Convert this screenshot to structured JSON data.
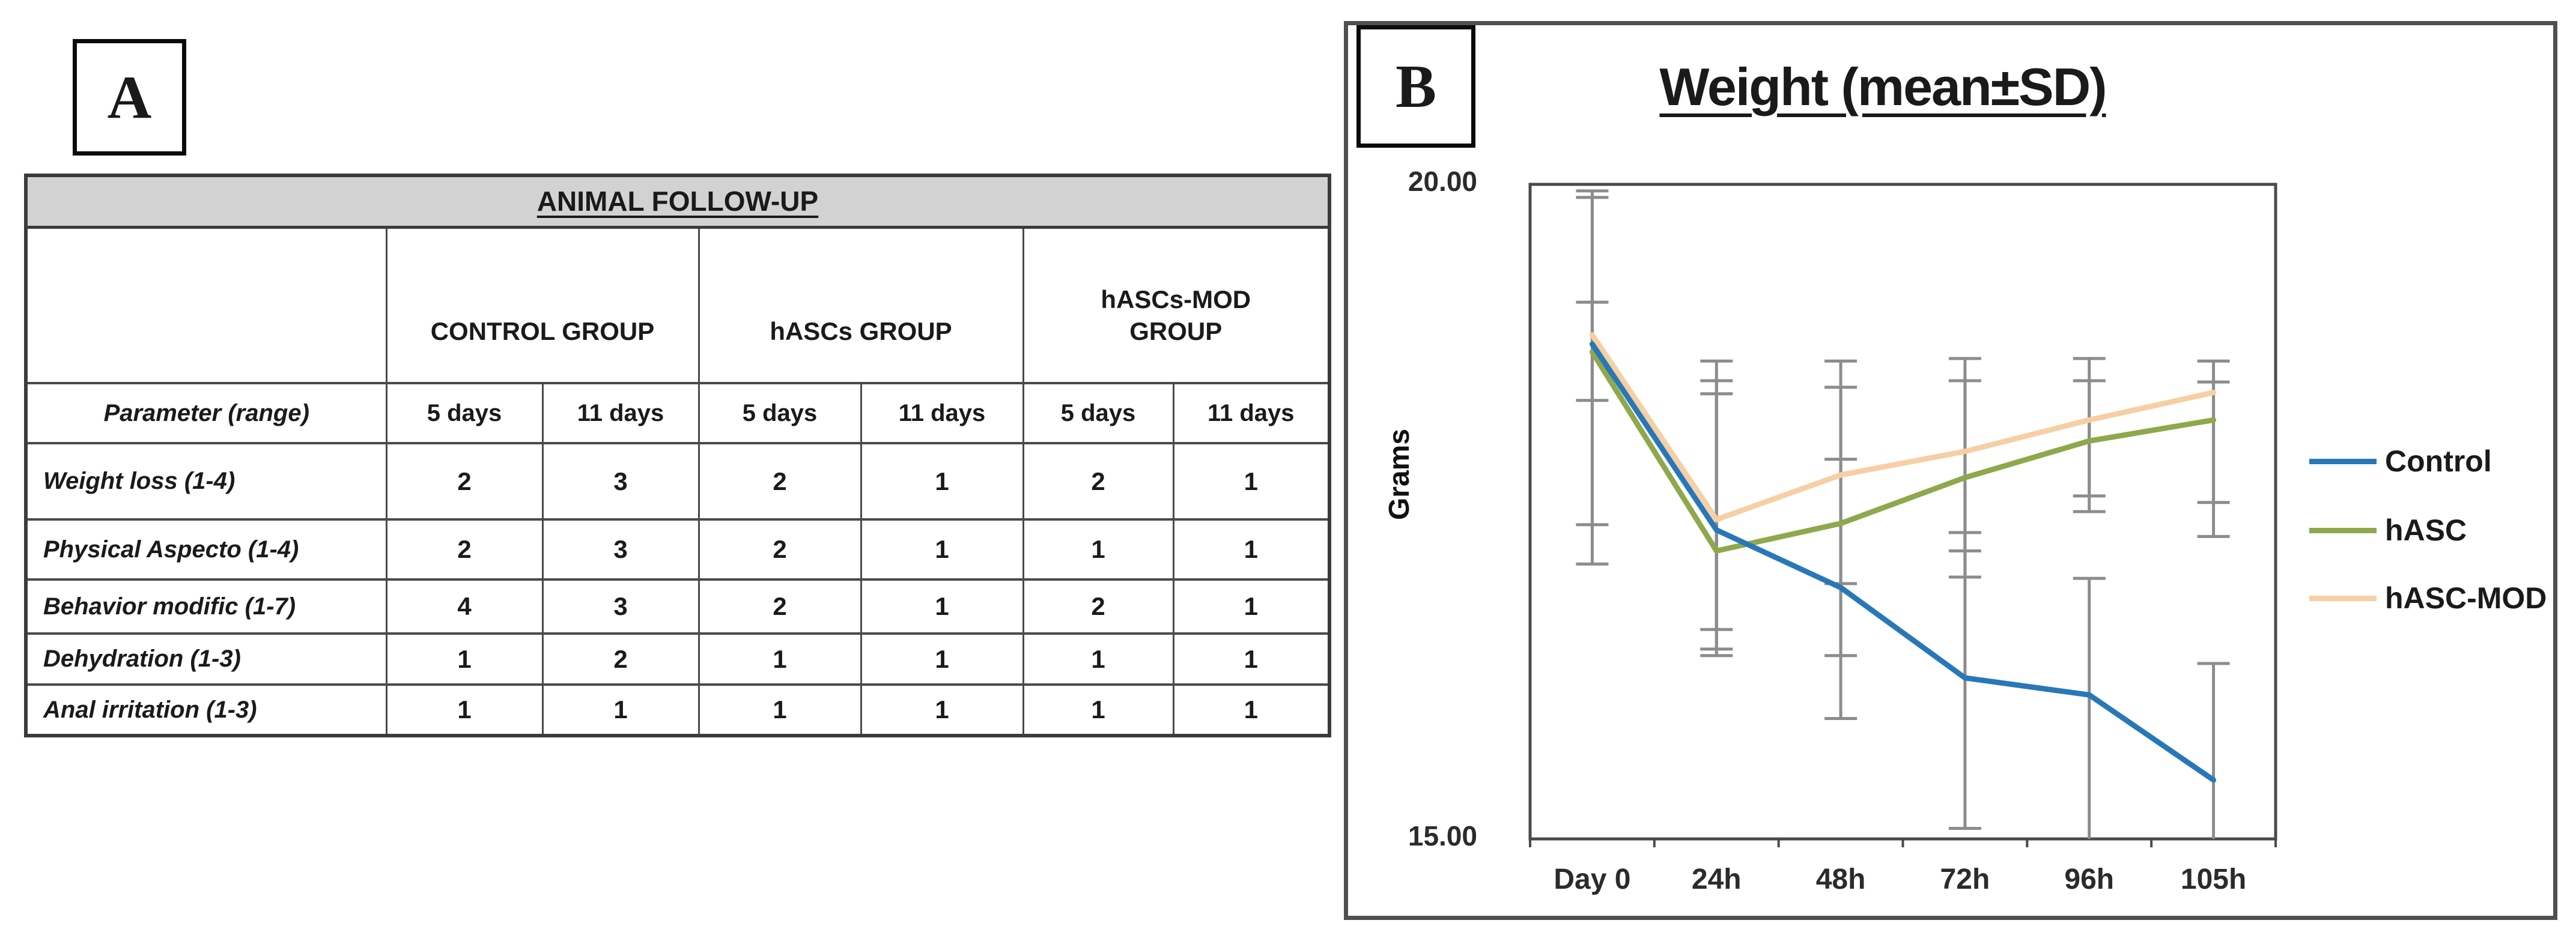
{
  "panel_a": {
    "label": "A",
    "table": {
      "title": "ANIMAL FOLLOW-UP",
      "title_bg": "#d2d2d2",
      "group_headers": [
        "CONTROL GROUP",
        "hASCs GROUP",
        "hASCs-MOD\nGROUP"
      ],
      "subheaders": [
        "Parameter (range)",
        "5 days",
        "11 days",
        "5 days",
        "11 days",
        "5 days",
        "11 days"
      ],
      "rows": [
        {
          "parameter": "Weight loss (1-4)",
          "values": [
            "2",
            "3",
            "2",
            "1",
            "2",
            "1"
          ]
        },
        {
          "parameter": "Physical Aspecto (1-4)",
          "values": [
            "2",
            "3",
            "2",
            "1",
            "1",
            "1"
          ]
        },
        {
          "parameter": "Behavior modific (1-7)",
          "values": [
            "4",
            "3",
            "2",
            "1",
            "2",
            "1"
          ]
        },
        {
          "parameter": "Dehydration (1-3)",
          "values": [
            "1",
            "2",
            "1",
            "1",
            "1",
            "1"
          ]
        },
        {
          "parameter": "Anal irritation (1-3)",
          "values": [
            "1",
            "1",
            "1",
            "1",
            "1",
            "1"
          ]
        }
      ]
    }
  },
  "panel_b": {
    "label": "B"
  },
  "chart_data": {
    "type": "line",
    "title": "Weight (mean±SD)",
    "xlabel": "",
    "ylabel": "Grams",
    "categories": [
      "Day 0",
      "24h",
      "48h",
      "72h",
      "96h",
      "105h"
    ],
    "ylim": [
      15.0,
      20.0
    ],
    "ytick_labels": [
      "20.00",
      "15.00"
    ],
    "grid": false,
    "legend_position": "right",
    "error_bar_color": "#8c8c8c",
    "series": [
      {
        "name": "Control",
        "color": "#2878b8",
        "values": [
          18.78,
          17.36,
          16.92,
          16.23,
          16.1,
          15.45
        ],
        "err_lo": [
          17.1,
          16.4,
          15.92,
          15.08,
          15.0,
          15.0
        ],
        "err_hi": [
          19.9,
          18.5,
          17.9,
          17.34,
          16.99,
          16.34
        ]
      },
      {
        "name": "hASC",
        "color": "#8ea84b",
        "values": [
          18.72,
          17.2,
          17.41,
          17.76,
          18.04,
          18.2
        ],
        "err_lo": [
          18.35,
          16.45,
          16.4,
          17.0,
          17.5,
          17.31
        ],
        "err_hi": [
          19.1,
          18.4,
          18.45,
          18.5,
          18.5,
          18.49
        ]
      },
      {
        "name": "hASC-MOD",
        "color": "#f6cfa4",
        "values": [
          18.85,
          17.44,
          17.78,
          17.96,
          18.2,
          18.41
        ],
        "err_lo": [
          17.4,
          16.6,
          16.95,
          17.2,
          17.62,
          17.57
        ],
        "err_hi": [
          19.95,
          18.65,
          18.65,
          18.67,
          18.67,
          18.65
        ]
      }
    ]
  }
}
